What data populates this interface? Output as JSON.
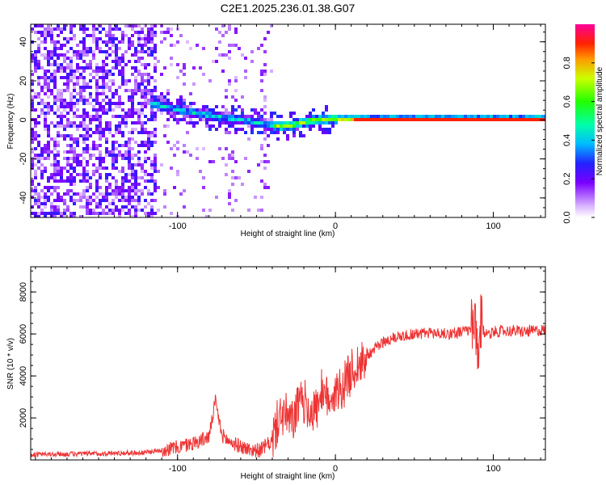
{
  "title": "C2E1.2025.236.01.38.G07",
  "chart_data": [
    {
      "type": "heatmap",
      "title": "C2E1.2025.236.01.38.G07",
      "xlabel": "Height of straight line (km)",
      "ylabel": "Frequency (Hz)",
      "xlim": [
        -193,
        133
      ],
      "ylim": [
        -50,
        49
      ],
      "xticks": [
        -100,
        0,
        100
      ],
      "xtick_labels": [
        "-100",
        "0",
        "100"
      ],
      "yticks": [
        -40,
        -20,
        0,
        20,
        40
      ],
      "ytick_labels": [
        "-40",
        "-20",
        "0",
        "20",
        "40"
      ],
      "colorbar": {
        "label": "Normalized spectral amplitude",
        "range": [
          0,
          1
        ],
        "ticks": [
          0,
          0.2,
          0.4,
          0.6,
          0.8
        ],
        "tick_labels": [
          "0.0",
          "0.2",
          "0.4",
          "0.6",
          "0.8"
        ]
      },
      "ridge": {
        "description_values": "dominant frequency track (Hz) vs height (km)",
        "x": [
          -115,
          -100,
          -80,
          -60,
          -40,
          -30,
          -20,
          -10,
          0,
          10,
          50,
          90,
          133
        ],
        "freq": [
          8,
          5,
          2,
          0,
          -3,
          -3,
          -1,
          0,
          0.5,
          0.5,
          0.5,
          0.5,
          0.5
        ]
      }
    },
    {
      "type": "line",
      "xlabel": "Height of straight line (km)",
      "ylabel": "SNR (10 * v/v)",
      "xlim": [
        -193,
        133
      ],
      "ylim": [
        0,
        9200
      ],
      "xticks": [
        -100,
        0,
        100
      ],
      "xtick_labels": [
        "-100",
        "0",
        "100"
      ],
      "yticks": [
        2000,
        4000,
        6000,
        8000
      ],
      "ytick_labels": [
        "2000",
        "4000",
        "6000",
        "8000"
      ],
      "color": "#ee3333",
      "series": [
        {
          "name": "SNR",
          "x": [
            -193,
            -150,
            -120,
            -100,
            -90,
            -80,
            -76,
            -72,
            -68,
            -62,
            -55,
            -48,
            -40,
            -36,
            -32,
            -28,
            -24,
            -20,
            -15,
            -10,
            -5,
            0,
            5,
            10,
            15,
            20,
            30,
            40,
            50,
            60,
            70,
            80,
            86,
            88,
            90,
            92,
            95,
            100,
            110,
            120,
            133
          ],
          "y": [
            250,
            300,
            350,
            600,
            800,
            1100,
            2800,
            1200,
            900,
            700,
            500,
            450,
            900,
            2000,
            2200,
            1700,
            2500,
            2800,
            2300,
            2600,
            3000,
            3200,
            3500,
            4200,
            4600,
            5000,
            5600,
            5900,
            6000,
            6050,
            6000,
            6100,
            6200,
            6500,
            4800,
            6400,
            6000,
            6100,
            6150,
            6100,
            6200
          ]
        }
      ]
    }
  ]
}
